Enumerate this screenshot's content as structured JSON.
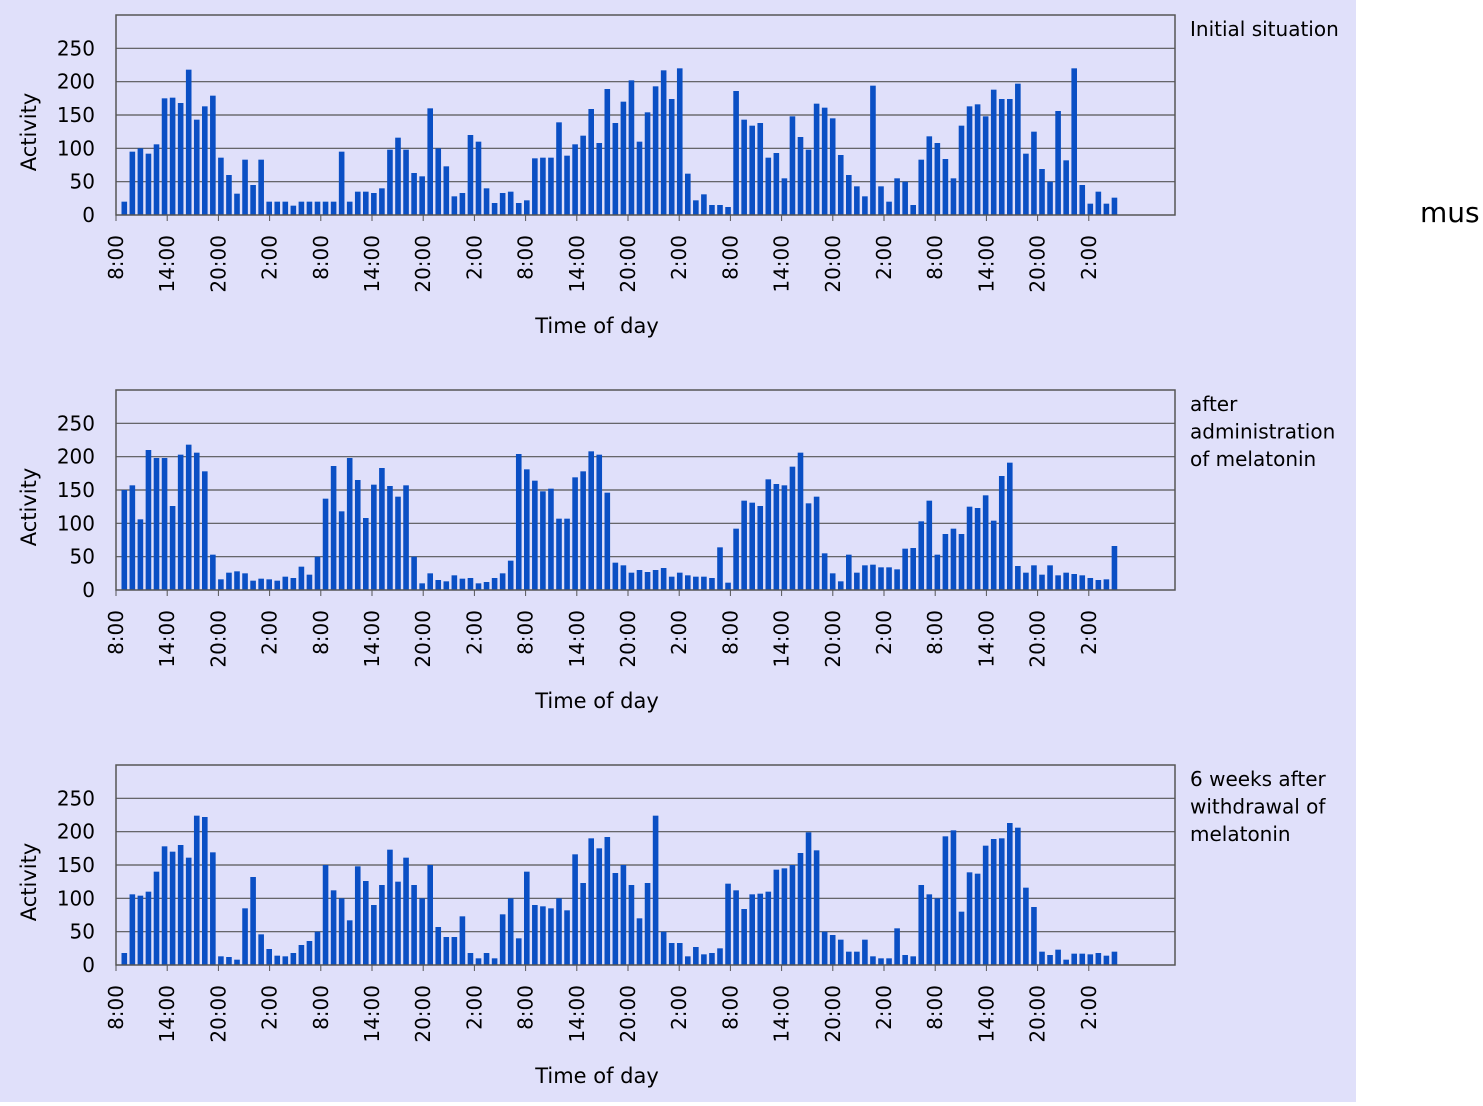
{
  "side_text": "mus",
  "chart_data": [
    {
      "type": "bar",
      "title": "Initial situation",
      "xlabel": "Time of day",
      "ylabel": "Activity",
      "ylim": [
        0,
        300
      ],
      "yticks": [
        0,
        50,
        100,
        150,
        200,
        250
      ],
      "color": "#0a4fc4",
      "xtick_labels": [
        "8:00",
        "14:00",
        "20:00",
        "2:00",
        "8:00",
        "14:00",
        "20:00",
        "2:00",
        "8:00",
        "14:00",
        "20:00",
        "2:00",
        "8:00",
        "14:00",
        "20:00",
        "2:00",
        "8:00",
        "14:00",
        "20:00",
        "2:00"
      ],
      "values": [
        20,
        95,
        100,
        92,
        106,
        175,
        176,
        168,
        218,
        143,
        163,
        179,
        86,
        60,
        32,
        83,
        45,
        83,
        20,
        20,
        20,
        14,
        20,
        20,
        20,
        20,
        20,
        95,
        20,
        35,
        35,
        33,
        40,
        98,
        116,
        98,
        63,
        58,
        160,
        100,
        73,
        28,
        33,
        120,
        110,
        40,
        18,
        33,
        35,
        18,
        22,
        85,
        86,
        86,
        139,
        89,
        106,
        119,
        159,
        108,
        189,
        138,
        170,
        202,
        110,
        154,
        193,
        217,
        174,
        220,
        62,
        22,
        31,
        15,
        15,
        12,
        186,
        143,
        134,
        138,
        86,
        93,
        55,
        148,
        117,
        98,
        167,
        161,
        145,
        90,
        60,
        43,
        28,
        194,
        43,
        20,
        55,
        50,
        15,
        83,
        118,
        108,
        84,
        55,
        134,
        163,
        166,
        148,
        188,
        174,
        174,
        197,
        92,
        125,
        69,
        50,
        156,
        82,
        220,
        45,
        17,
        35,
        17,
        26
      ],
      "grid": true,
      "legend": "none"
    },
    {
      "type": "bar",
      "title": "after administration of melatonin",
      "xlabel": "Time of day",
      "ylabel": "Activity",
      "ylim": [
        0,
        300
      ],
      "yticks": [
        0,
        50,
        100,
        150,
        200,
        250
      ],
      "color": "#0a4fc4",
      "xtick_labels": [
        "8:00",
        "14:00",
        "20:00",
        "2:00",
        "8:00",
        "14:00",
        "20:00",
        "2:00",
        "8:00",
        "14:00",
        "20:00",
        "2:00",
        "8:00",
        "14:00",
        "20:00",
        "2:00",
        "8:00",
        "14:00",
        "20:00",
        "2:00"
      ],
      "values": [
        150,
        157,
        106,
        210,
        198,
        198,
        126,
        203,
        218,
        206,
        178,
        53,
        16,
        26,
        28,
        25,
        14,
        17,
        16,
        14,
        20,
        18,
        35,
        23,
        50,
        137,
        186,
        118,
        198,
        165,
        108,
        158,
        183,
        156,
        140,
        157,
        50,
        10,
        25,
        15,
        13,
        22,
        17,
        18,
        10,
        12,
        18,
        25,
        44,
        204,
        181,
        164,
        148,
        152,
        107,
        107,
        169,
        178,
        208,
        203,
        146,
        41,
        37,
        26,
        30,
        27,
        30,
        33,
        20,
        26,
        22,
        20,
        20,
        18,
        64,
        11,
        92,
        134,
        131,
        126,
        166,
        159,
        157,
        185,
        206,
        130,
        140,
        55,
        25,
        13,
        53,
        26,
        37,
        38,
        34,
        34,
        31,
        62,
        63,
        103,
        134,
        53,
        84,
        92,
        84,
        125,
        123,
        142,
        104,
        171,
        191,
        36,
        26,
        37,
        23,
        37,
        22,
        26,
        24,
        22,
        18,
        15,
        16,
        66
      ],
      "grid": true,
      "legend": "none"
    },
    {
      "type": "bar",
      "title": "6 weeks after withdrawal of melatonin",
      "xlabel": "Time of day",
      "ylabel": "Activity",
      "ylim": [
        0,
        300
      ],
      "yticks": [
        0,
        50,
        100,
        150,
        200,
        250
      ],
      "color": "#0a4fc4",
      "xtick_labels": [
        "8:00",
        "14:00",
        "20:00",
        "2:00",
        "8:00",
        "14:00",
        "20:00",
        "2:00",
        "8:00",
        "14:00",
        "20:00",
        "2:00",
        "8:00",
        "14:00",
        "20:00",
        "2:00",
        "8:00",
        "14:00",
        "20:00",
        "2:00"
      ],
      "values": [
        18,
        106,
        104,
        110,
        140,
        178,
        170,
        180,
        161,
        224,
        222,
        169,
        13,
        12,
        8,
        85,
        132,
        46,
        24,
        14,
        13,
        18,
        30,
        36,
        50,
        150,
        112,
        100,
        67,
        148,
        126,
        90,
        120,
        173,
        125,
        161,
        120,
        100,
        150,
        57,
        42,
        42,
        73,
        18,
        10,
        18,
        10,
        76,
        100,
        40,
        140,
        90,
        88,
        85,
        100,
        82,
        166,
        123,
        190,
        175,
        192,
        138,
        150,
        120,
        70,
        123,
        224,
        50,
        33,
        33,
        13,
        27,
        16,
        18,
        25,
        122,
        112,
        84,
        106,
        107,
        110,
        143,
        145,
        150,
        168,
        199,
        172,
        50,
        45,
        38,
        20,
        20,
        38,
        13,
        10,
        10,
        55,
        15,
        13,
        120,
        106,
        100,
        193,
        202,
        80,
        139,
        137,
        179,
        189,
        190,
        213,
        206,
        116,
        87,
        20,
        15,
        23,
        8,
        17,
        17,
        16,
        18,
        14,
        20
      ],
      "grid": true,
      "legend": "none"
    }
  ]
}
